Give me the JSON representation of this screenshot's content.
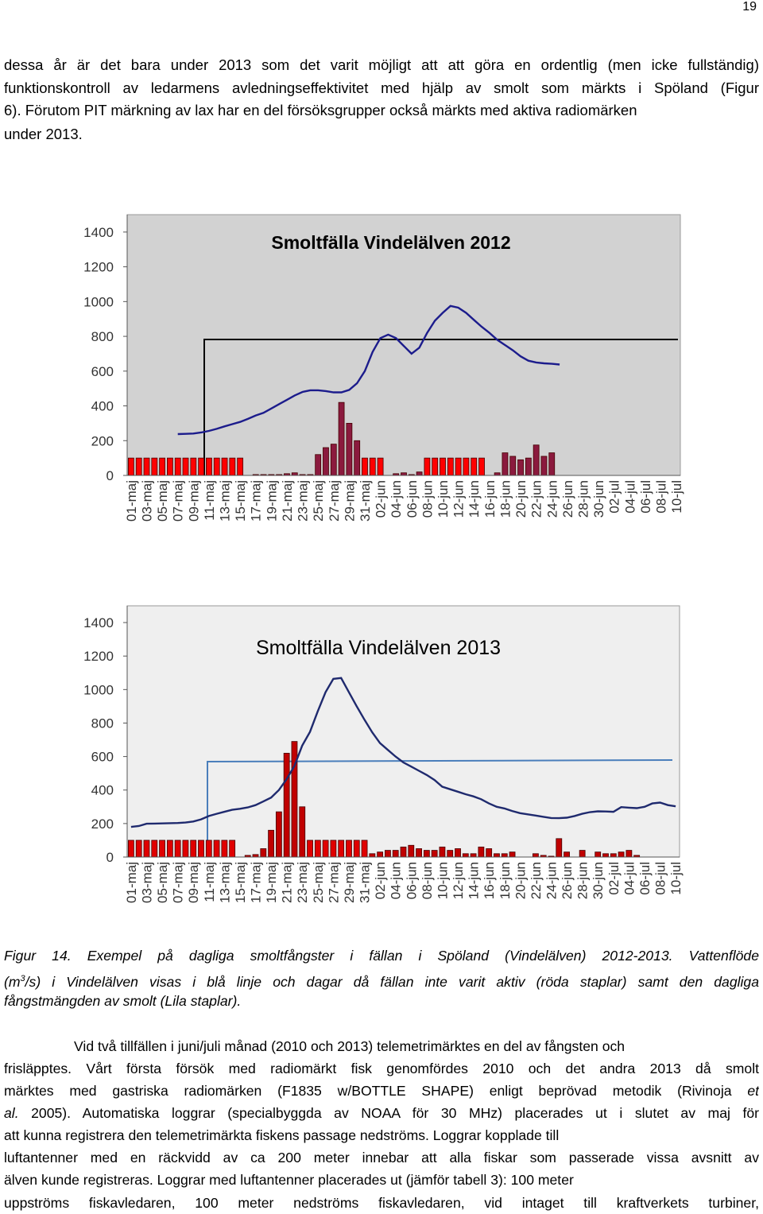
{
  "page_number": "19",
  "intro": {
    "lines": [
      "dessa år är det bara under 2013 som det varit möjligt att att göra en ordentlig (men icke fullständig)",
      "funktionskontroll av ledarmens avledningseffektivitet med hjälp av smolt som märkts i Spöland (Figur",
      "6). Förutom PIT märkning av lax har en del försöksgrupper också märkts med aktiva radiomärken",
      "under 2013."
    ]
  },
  "chart_data": [
    {
      "type": "bar",
      "title": "Smoltfälla Vindelälven 2012",
      "background": "#d2d2d2",
      "title_weight": "bold",
      "categories": [
        "01-maj",
        null,
        "03-maj",
        null,
        "05-maj",
        null,
        "07-maj",
        null,
        "09-maj",
        null,
        "11-maj",
        null,
        "13-maj",
        null,
        "15-maj",
        null,
        "17-maj",
        null,
        "19-maj",
        null,
        "21-maj",
        null,
        "23-maj",
        null,
        "25-maj",
        null,
        "27-maj",
        null,
        "29-maj",
        null,
        "31-maj",
        null,
        "02-jun",
        null,
        "04-jun",
        null,
        "06-jun",
        null,
        "08-jun",
        null,
        "10-jun",
        null,
        "12-jun",
        null,
        "14-jun",
        null,
        "16-jun",
        null,
        "18-jun",
        null,
        "20-jun",
        null,
        "22-jun",
        null,
        "24-jun",
        null,
        "26-jun",
        null,
        "28-jun",
        null,
        "30-jun",
        null,
        "02-jul",
        null,
        "04-jul",
        null,
        "06-jul",
        null,
        "08-jul",
        null,
        "10-jul"
      ],
      "ylim": [
        0,
        1500
      ],
      "yticks": [
        0,
        200,
        400,
        600,
        800,
        1000,
        1200,
        1400
      ],
      "series": [
        {
          "type": "bar",
          "color": "#ff0000",
          "values": [
            100,
            100,
            100,
            100,
            100,
            100,
            100,
            100,
            100,
            100,
            100,
            100,
            100,
            100,
            100,
            null,
            null,
            null,
            null,
            null,
            null,
            null,
            null,
            null,
            null,
            null,
            null,
            null,
            null,
            null,
            100,
            100,
            100,
            null,
            null,
            null,
            null,
            null,
            100,
            100,
            100,
            100,
            100,
            100,
            100,
            100,
            null,
            null,
            null,
            null,
            null,
            null,
            null,
            null,
            null,
            null,
            null,
            null,
            null,
            null,
            null,
            null,
            null,
            null,
            null,
            null,
            null,
            null,
            null,
            null,
            null
          ]
        },
        {
          "type": "bar",
          "color": "#8b1a3e",
          "values": [
            null,
            null,
            null,
            null,
            null,
            null,
            null,
            null,
            null,
            null,
            null,
            null,
            null,
            null,
            null,
            null,
            5,
            5,
            5,
            5,
            10,
            15,
            5,
            5,
            120,
            160,
            180,
            420,
            300,
            200,
            null,
            null,
            null,
            null,
            10,
            15,
            5,
            20,
            null,
            null,
            null,
            null,
            null,
            null,
            null,
            null,
            null,
            15,
            130,
            110,
            90,
            100,
            175,
            110,
            130,
            null,
            null,
            null,
            null,
            null,
            null,
            null,
            null,
            null,
            null,
            null,
            null,
            null,
            null,
            null,
            null
          ]
        },
        {
          "type": "line",
          "color": "#1c1c8c",
          "values": [
            null,
            null,
            null,
            null,
            null,
            null,
            238,
            239,
            241,
            247,
            256,
            268,
            282,
            295,
            308,
            325,
            345,
            360,
            385,
            410,
            435,
            460,
            480,
            490,
            490,
            485,
            478,
            478,
            492,
            530,
            600,
            710,
            790,
            810,
            790,
            745,
            700,
            735,
            820,
            890,
            935,
            975,
            965,
            935,
            895,
            855,
            820,
            780,
            750,
            720,
            685,
            660,
            650,
            645,
            642,
            638,
            null,
            null,
            null,
            null,
            null,
            null,
            null,
            null,
            null,
            null,
            null,
            null,
            null,
            null,
            null
          ]
        }
      ]
    },
    {
      "type": "bar",
      "title": "Smoltfälla Vindelälven 2013",
      "background": "#efefef",
      "title_weight": "normal",
      "categories": [
        "01-maj",
        null,
        "03-maj",
        null,
        "05-maj",
        null,
        "07-maj",
        null,
        "09-maj",
        null,
        "11-maj",
        null,
        "13-maj",
        null,
        "15-maj",
        null,
        "17-maj",
        null,
        "19-maj",
        null,
        "21-maj",
        null,
        "23-maj",
        null,
        "25-maj",
        null,
        "27-maj",
        null,
        "29-maj",
        null,
        "31-maj",
        null,
        "02-jun",
        null,
        "04-jun",
        null,
        "06-jun",
        null,
        "08-jun",
        null,
        "10-jun",
        null,
        "12-jun",
        null,
        "14-jun",
        null,
        "16-jun",
        null,
        "18-jun",
        null,
        "20-jun",
        null,
        "22-jun",
        null,
        "24-jun",
        null,
        "26-jun",
        null,
        "28-jun",
        null,
        "30-jun",
        null,
        "02-jul",
        null,
        "04-jul",
        null,
        "06-jul",
        null,
        "08-jul",
        null,
        "10-jul"
      ],
      "ylim": [
        0,
        1500
      ],
      "yticks": [
        0,
        200,
        400,
        600,
        800,
        1000,
        1200,
        1400
      ],
      "series": [
        {
          "type": "bar",
          "color": "#e00000",
          "values": [
            100,
            100,
            100,
            100,
            100,
            100,
            100,
            100,
            100,
            100,
            100,
            100,
            100,
            100,
            null,
            null,
            null,
            null,
            null,
            null,
            null,
            null,
            null,
            100,
            100,
            100,
            100,
            100,
            100,
            100,
            100,
            null,
            null,
            null,
            null,
            null,
            null,
            null,
            null,
            null,
            null,
            null,
            null,
            null,
            null,
            null,
            null,
            null,
            null,
            null,
            null,
            null,
            null,
            null,
            null,
            null,
            null,
            null,
            null,
            null,
            null,
            null,
            null,
            null,
            null,
            null,
            null,
            null,
            null,
            null,
            null
          ]
        },
        {
          "type": "bar",
          "color": "#c00000",
          "values": [
            null,
            null,
            null,
            null,
            null,
            null,
            null,
            null,
            null,
            null,
            null,
            null,
            null,
            null,
            null,
            10,
            15,
            50,
            160,
            270,
            620,
            690,
            300,
            null,
            null,
            null,
            null,
            null,
            null,
            null,
            null,
            20,
            30,
            40,
            40,
            60,
            70,
            50,
            40,
            40,
            60,
            40,
            50,
            20,
            20,
            60,
            50,
            20,
            20,
            30,
            null,
            null,
            20,
            10,
            5,
            110,
            30,
            null,
            40,
            null,
            30,
            20,
            20,
            30,
            40,
            10,
            null,
            null,
            null,
            null,
            null
          ]
        },
        {
          "type": "line",
          "color": "#1f2a6e",
          "values": [
            180,
            185,
            199,
            200,
            201,
            202,
            203,
            206,
            212,
            225,
            245,
            258,
            270,
            282,
            288,
            296,
            310,
            332,
            355,
            400,
            465,
            545,
            665,
            747,
            870,
            984,
            1064,
            1069,
            984,
            900,
            820,
            745,
            680,
            640,
            600,
            565,
            540,
            515,
            490,
            460,
            420,
            405,
            390,
            375,
            362,
            345,
            320,
            300,
            290,
            275,
            262,
            255,
            248,
            240,
            233,
            232,
            235,
            245,
            258,
            268,
            273,
            272,
            270,
            298,
            295,
            292,
            300,
            320,
            325,
            310,
            303
          ]
        }
      ]
    }
  ],
  "caption": {
    "line1": "Figur 14. Exempel på dagliga smoltfångster i fällan i Spöland (Vindelälven) 2012-2013. Vattenflöde",
    "line2_start": "(m",
    "line2_sup": "3",
    "line2_end": "/s) i Vindelälven visas i blå linje och dagar då fällan inte varit aktiv (röda staplar) samt den dagliga",
    "line3": "fångstmängden av smolt (Lila staplar)."
  },
  "body": {
    "line1": "Vid två tillfällen i juni/juli månad (2010 och 2013) telemetrimärktes en del av fångsten och",
    "line2": "frisläpptes. Vårt första försök med radiomärkt fisk genomfördes 2010 och det andra 2013 då smolt",
    "line3_start": "märktes med gastriska radiomärken (F1835 w/BOTTLE SHAPE) enligt beprövad metodik (Rivinoja ",
    "line3_italic": "et",
    "line4_italic": "al.",
    "line4_end": " 2005). Automatiska loggrar (specialbyggda av NOAA för 30 MHz) placerades ut i slutet av maj för",
    "line5": "att kunna registrera den telemetrimärkta fiskens passage nedströms. Loggrar kopplade till",
    "line6": "luftantenner med en räckvidd av ca 200 meter innebar att alla fiskar som passerade vissa avsnitt av",
    "line7": "älven kunde registreras. Loggrar med luftantenner placerades ut (jämför tabell 3): 100 meter",
    "line8": "uppströms fiskavledaren, 100 meter nedströms fiskavledaren, vid intaget till kraftverkets turbiner,"
  }
}
